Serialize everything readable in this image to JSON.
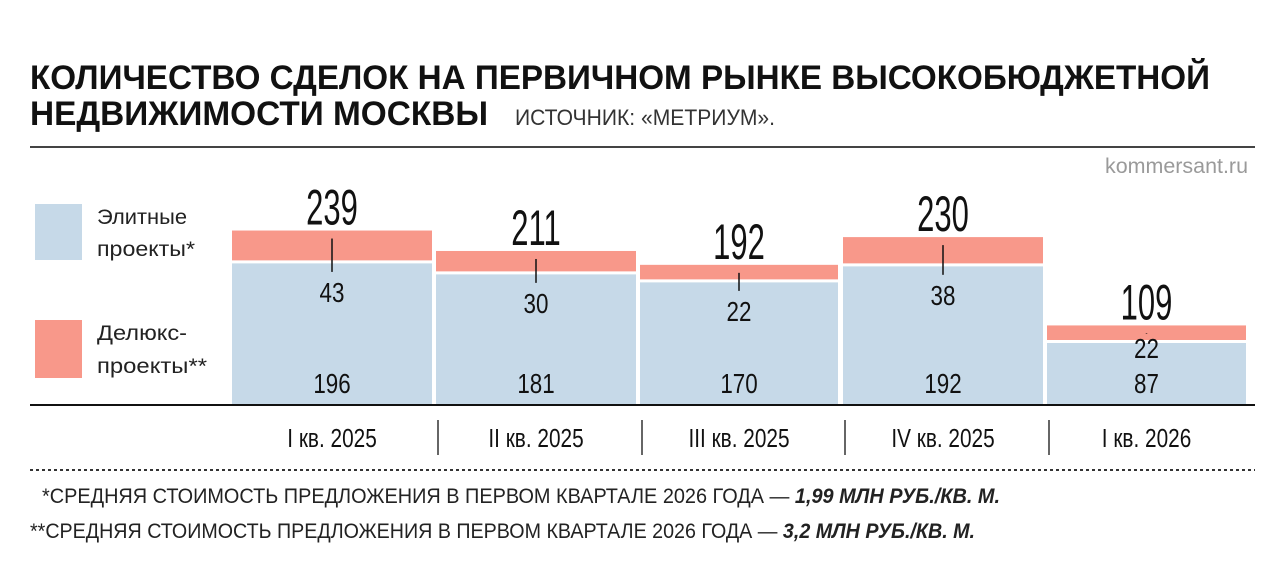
{
  "header": {
    "title_line1": "КОЛИЧЕСТВО СДЕЛОК НА ПЕРВИЧНОМ РЫНКЕ ВЫСОКОБЮДЖЕТНОЙ",
    "title_line2": "НЕДВИЖИМОСТИ МОСКВЫ",
    "source": "ИСТОЧНИК: «МЕТРИУМ».",
    "watermark": "kommersant.ru"
  },
  "footnotes": {
    "note1_text": "*СРЕДНЯЯ СТОИМОСТЬ ПРЕДЛОЖЕНИЯ В ПЕРВОМ КВАРТАЛЕ 2026 ГОДА — ",
    "note1_value": "1,99 МЛН РУБ./КВ. М.",
    "note2_text": "**СРЕДНЯЯ СТОИМОСТЬ ПРЕДЛОЖЕНИЯ В ПЕРВОМ КВАРТАЛЕ 2026 ГОДА — ",
    "note2_value": "3,2 МЛН РУБ./КВ. М."
  },
  "chart_data": {
    "type": "bar",
    "stacked": true,
    "title": "КОЛИЧЕСТВО СДЕЛОК НА ПЕРВИЧНОМ РЫНКЕ ВЫСОКОБЮДЖЕТНОЙ НЕДВИЖИМОСТИ МОСКВЫ",
    "categories": [
      "I кв. 2025",
      "II кв. 2025",
      "III кв. 2025",
      "IV кв. 2025",
      "I кв. 2026"
    ],
    "series": [
      {
        "name": "Элитные проекты*",
        "values": [
          196,
          181,
          170,
          192,
          87
        ],
        "color": "#c6d9e8"
      },
      {
        "name": "Делюкс-проекты**",
        "values": [
          43,
          30,
          22,
          38,
          22
        ],
        "color": "#f8988a"
      }
    ],
    "totals": [
      239,
      211,
      192,
      230,
      109
    ],
    "legend": {
      "position": "left",
      "items": [
        {
          "line1": "Элитные",
          "line2": "проекты*"
        },
        {
          "line1": "Делюкс-",
          "line2": "проекты**"
        }
      ]
    },
    "ylim": [
      0,
      240
    ],
    "grid": false
  }
}
